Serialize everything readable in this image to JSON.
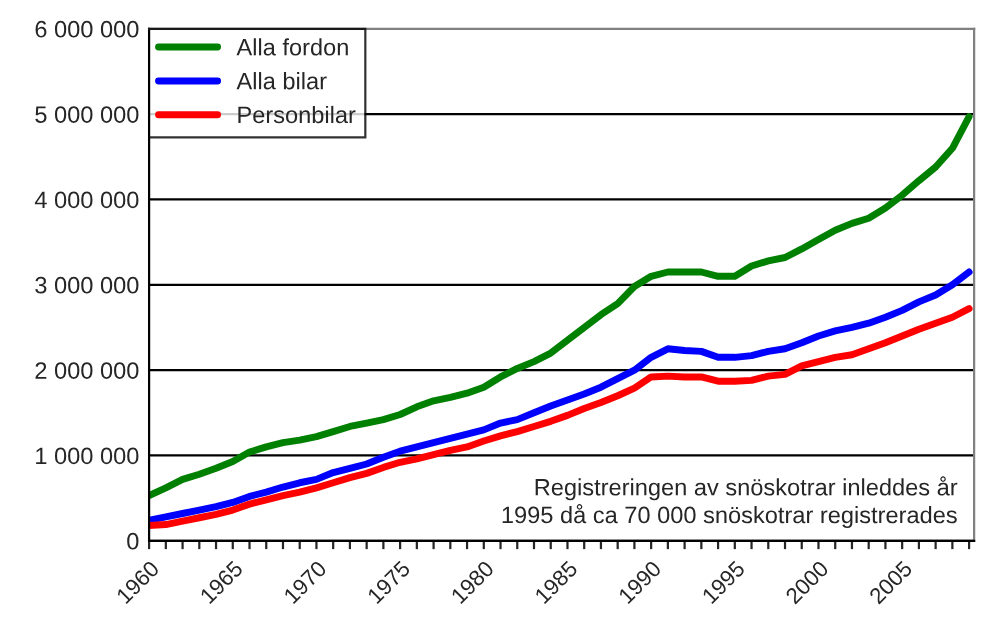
{
  "chart_data": {
    "type": "line",
    "x": [
      1960,
      1961,
      1962,
      1963,
      1964,
      1965,
      1966,
      1967,
      1968,
      1969,
      1970,
      1971,
      1972,
      1973,
      1974,
      1975,
      1976,
      1977,
      1978,
      1979,
      1980,
      1981,
      1982,
      1983,
      1984,
      1985,
      1986,
      1987,
      1988,
      1989,
      1990,
      1991,
      1992,
      1993,
      1994,
      1995,
      1996,
      1997,
      1998,
      1999,
      2000,
      2001,
      2002,
      2003,
      2004,
      2005,
      2006,
      2007,
      2008,
      2009
    ],
    "series": [
      {
        "name": "Alla fordon",
        "color": "#008000",
        "values": [
          530000,
          620000,
          720000,
          780000,
          850000,
          930000,
          1040000,
          1100000,
          1150000,
          1180000,
          1220000,
          1280000,
          1340000,
          1380000,
          1420000,
          1480000,
          1570000,
          1640000,
          1680000,
          1730000,
          1800000,
          1920000,
          2020000,
          2100000,
          2200000,
          2350000,
          2500000,
          2650000,
          2780000,
          2980000,
          3100000,
          3150000,
          3150000,
          3150000,
          3100000,
          3100000,
          3220000,
          3280000,
          3320000,
          3420000,
          3530000,
          3640000,
          3720000,
          3780000,
          3900000,
          4050000,
          4220000,
          4380000,
          4600000,
          4970000
        ]
      },
      {
        "name": "Alla bilar",
        "color": "#0000ff",
        "values": [
          240000,
          280000,
          320000,
          360000,
          400000,
          450000,
          520000,
          570000,
          630000,
          680000,
          720000,
          800000,
          850000,
          900000,
          980000,
          1050000,
          1100000,
          1150000,
          1200000,
          1250000,
          1300000,
          1380000,
          1420000,
          1500000,
          1580000,
          1650000,
          1720000,
          1800000,
          1900000,
          2000000,
          2150000,
          2250000,
          2230000,
          2220000,
          2150000,
          2150000,
          2170000,
          2220000,
          2250000,
          2320000,
          2400000,
          2460000,
          2500000,
          2550000,
          2620000,
          2700000,
          2800000,
          2880000,
          3000000,
          3150000
        ]
      },
      {
        "name": "Personbilar",
        "color": "#ff0000",
        "values": [
          180000,
          190000,
          230000,
          270000,
          310000,
          360000,
          430000,
          480000,
          530000,
          570000,
          620000,
          680000,
          740000,
          790000,
          860000,
          920000,
          960000,
          1010000,
          1060000,
          1100000,
          1170000,
          1230000,
          1280000,
          1340000,
          1400000,
          1470000,
          1550000,
          1620000,
          1700000,
          1790000,
          1920000,
          1930000,
          1920000,
          1920000,
          1870000,
          1870000,
          1880000,
          1930000,
          1950000,
          2050000,
          2100000,
          2150000,
          2180000,
          2250000,
          2320000,
          2400000,
          2480000,
          2550000,
          2620000,
          2720000
        ]
      }
    ],
    "xlim": [
      1960,
      2009.3
    ],
    "xticks": [
      {
        "value": 1960,
        "label": "1960"
      },
      {
        "value": 1961,
        "label": null
      },
      {
        "value": 1962,
        "label": null
      },
      {
        "value": 1963,
        "label": null
      },
      {
        "value": 1964,
        "label": null
      },
      {
        "value": 1965,
        "label": "1965"
      },
      {
        "value": 1966,
        "label": null
      },
      {
        "value": 1967,
        "label": null
      },
      {
        "value": 1968,
        "label": null
      },
      {
        "value": 1969,
        "label": null
      },
      {
        "value": 1970,
        "label": "1970"
      },
      {
        "value": 1971,
        "label": null
      },
      {
        "value": 1972,
        "label": null
      },
      {
        "value": 1973,
        "label": null
      },
      {
        "value": 1974,
        "label": null
      },
      {
        "value": 1975,
        "label": "1975"
      },
      {
        "value": 1976,
        "label": null
      },
      {
        "value": 1977,
        "label": null
      },
      {
        "value": 1978,
        "label": null
      },
      {
        "value": 1979,
        "label": null
      },
      {
        "value": 1980,
        "label": "1980"
      },
      {
        "value": 1981,
        "label": null
      },
      {
        "value": 1982,
        "label": null
      },
      {
        "value": 1983,
        "label": null
      },
      {
        "value": 1984,
        "label": null
      },
      {
        "value": 1985,
        "label": "1985"
      },
      {
        "value": 1986,
        "label": null
      },
      {
        "value": 1987,
        "label": null
      },
      {
        "value": 1988,
        "label": null
      },
      {
        "value": 1989,
        "label": null
      },
      {
        "value": 1990,
        "label": "1990"
      },
      {
        "value": 1991,
        "label": null
      },
      {
        "value": 1992,
        "label": null
      },
      {
        "value": 1993,
        "label": null
      },
      {
        "value": 1994,
        "label": null
      },
      {
        "value": 1995,
        "label": "1995"
      },
      {
        "value": 1996,
        "label": null
      },
      {
        "value": 1997,
        "label": null
      },
      {
        "value": 1998,
        "label": null
      },
      {
        "value": 1999,
        "label": null
      },
      {
        "value": 2000,
        "label": "2000"
      },
      {
        "value": 2001,
        "label": null
      },
      {
        "value": 2002,
        "label": null
      },
      {
        "value": 2003,
        "label": null
      },
      {
        "value": 2004,
        "label": null
      },
      {
        "value": 2005,
        "label": "2005"
      },
      {
        "value": 2006,
        "label": null
      },
      {
        "value": 2007,
        "label": null
      },
      {
        "value": 2008,
        "label": null
      },
      {
        "value": 2009,
        "label": null
      }
    ],
    "ylim": [
      0,
      6000000
    ],
    "yticks": [
      {
        "value": 0,
        "label": "0"
      },
      {
        "value": 1000000,
        "label": "1 000 000"
      },
      {
        "value": 2000000,
        "label": "2 000 000"
      },
      {
        "value": 3000000,
        "label": "3 000 000"
      },
      {
        "value": 4000000,
        "label": "4 000 000"
      },
      {
        "value": 5000000,
        "label": "5 000 000"
      },
      {
        "value": 6000000,
        "label": "6 000 000"
      }
    ],
    "annotations": [
      "Registreringen av snöskotrar inleddes år\n1995 då ca 70 000 snöskotrar registrerades"
    ],
    "grid": "y",
    "legend": "top left",
    "marker": "none",
    "line_style": "solid"
  }
}
